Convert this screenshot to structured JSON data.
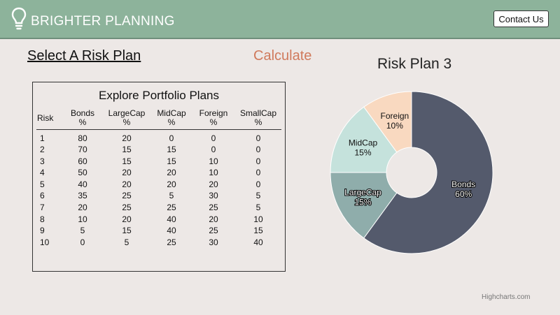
{
  "header": {
    "brand": "BRIGHTER PLANNING",
    "logo_icon": "lightbulb-icon",
    "contact_label": "Contact Us",
    "bg_color": "#8db39b"
  },
  "nav": {
    "select_label": "Select A Risk Plan",
    "calculate_label": "Calculate"
  },
  "table": {
    "title": "Explore Portfolio Plans",
    "headers": [
      {
        "line1": "Risk",
        "line2": ""
      },
      {
        "line1": "Bonds",
        "line2": "%"
      },
      {
        "line1": "LargeCap",
        "line2": "%"
      },
      {
        "line1": "MidCap",
        "line2": "%"
      },
      {
        "line1": "Foreign",
        "line2": "%"
      },
      {
        "line1": "SmallCap",
        "line2": "%"
      }
    ],
    "rows": [
      [
        "1",
        "80",
        "20",
        "0",
        "0",
        "0"
      ],
      [
        "2",
        "70",
        "15",
        "15",
        "0",
        "0"
      ],
      [
        "3",
        "60",
        "15",
        "15",
        "10",
        "0"
      ],
      [
        "4",
        "50",
        "20",
        "20",
        "10",
        "0"
      ],
      [
        "5",
        "40",
        "20",
        "20",
        "20",
        "0"
      ],
      [
        "6",
        "35",
        "25",
        "5",
        "30",
        "5"
      ],
      [
        "7",
        "20",
        "25",
        "25",
        "25",
        "5"
      ],
      [
        "8",
        "10",
        "20",
        "40",
        "20",
        "10"
      ],
      [
        "9",
        "5",
        "15",
        "40",
        "25",
        "15"
      ],
      [
        "10",
        "0",
        "5",
        "25",
        "30",
        "40"
      ]
    ]
  },
  "chart_data": {
    "type": "pie",
    "title": "Risk Plan 3",
    "donut": true,
    "slices": [
      {
        "name": "Bonds",
        "value": 60,
        "label": "60%",
        "color": "#545a6c",
        "label_color": "#ffffff"
      },
      {
        "name": "LargeCap",
        "value": 15,
        "label": "15%",
        "color": "#8fadab",
        "label_color": "#ffffff"
      },
      {
        "name": "MidCap",
        "value": 15,
        "label": "15%",
        "color": "#c5e2dc",
        "label_color": "#111111"
      },
      {
        "name": "Foreign",
        "value": 10,
        "label": "10%",
        "color": "#f9d9c0",
        "label_color": "#111111"
      }
    ]
  },
  "credit": "Highcharts.com"
}
